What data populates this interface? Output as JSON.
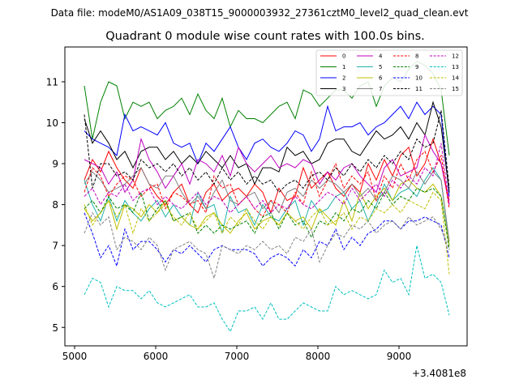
{
  "suptitle": "Data file: modeM0/AS1A09_038T15_9000003932_27361cztM0_level2_quad_clean.evt",
  "chart_data": {
    "type": "line",
    "title": "Quadrant 0 module wise count rates with 100.0s bins.",
    "xlabel": "",
    "ylabel": "",
    "x_offset_label": "+3.4081e8",
    "xlim": [
      4880,
      9840
    ],
    "ylim": [
      4.55,
      11.85
    ],
    "xticks": [
      5000,
      6000,
      7000,
      8000,
      9000
    ],
    "yticks": [
      5,
      6,
      7,
      8,
      9,
      10,
      11
    ],
    "x": [
      5120,
      5220,
      5320,
      5420,
      5520,
      5620,
      5720,
      5820,
      5920,
      6020,
      6120,
      6220,
      6320,
      6420,
      6520,
      6620,
      6720,
      6820,
      6920,
      7020,
      7120,
      7220,
      7320,
      7420,
      7520,
      7620,
      7720,
      7820,
      7920,
      8020,
      8120,
      8220,
      8320,
      8420,
      8520,
      8620,
      8720,
      8820,
      8920,
      9020,
      9120,
      9220,
      9320,
      9420,
      9520,
      9620
    ],
    "legend_loc": "upper-right",
    "series": [
      {
        "name": "0",
        "color": "#ff0000",
        "dash": "solid",
        "values": [
          8.6,
          9.1,
          8.8,
          9.3,
          8.9,
          8.6,
          8.4,
          8.9,
          8.5,
          8.2,
          8.0,
          8.3,
          8.5,
          8.0,
          7.8,
          8.3,
          8.5,
          8.1,
          8.3,
          8.4,
          8.2,
          8.5,
          8.3,
          7.8,
          8.4,
          8.1,
          8.2,
          8.9,
          8.4,
          8.6,
          8.8,
          8.4,
          8.2,
          8.5,
          8.3,
          9.0,
          8.6,
          9.1,
          8.7,
          9.2,
          9.4,
          8.7,
          9.0,
          9.6,
          9.0,
          8.1
        ]
      },
      {
        "name": "1",
        "color": "#008000",
        "dash": "solid",
        "values": [
          10.9,
          9.6,
          10.5,
          11.0,
          10.9,
          10.1,
          10.5,
          10.4,
          10.5,
          10.1,
          10.3,
          10.4,
          10.6,
          10.2,
          10.7,
          10.3,
          10.1,
          10.6,
          9.9,
          10.3,
          10.1,
          10.1,
          10.0,
          10.2,
          10.4,
          10.5,
          10.1,
          10.8,
          10.7,
          10.4,
          10.6,
          10.8,
          10.8,
          10.6,
          10.9,
          11.0,
          10.4,
          10.9,
          11.1,
          11.0,
          11.3,
          11.5,
          11.4,
          11.2,
          10.8,
          9.2
        ]
      },
      {
        "name": "2",
        "color": "#0000ff",
        "dash": "solid",
        "values": [
          9.8,
          9.6,
          9.5,
          9.4,
          9.2,
          10.2,
          9.8,
          9.9,
          9.8,
          9.7,
          10.0,
          9.5,
          9.4,
          9.5,
          9.0,
          9.5,
          9.3,
          9.6,
          9.9,
          9.4,
          9.1,
          9.5,
          9.6,
          9.4,
          9.3,
          9.5,
          9.8,
          9.7,
          9.3,
          9.6,
          10.4,
          9.8,
          9.9,
          9.9,
          10.0,
          9.7,
          9.9,
          10.0,
          10.2,
          10.4,
          10.1,
          10.5,
          10.2,
          10.4,
          10.2,
          8.2
        ]
      },
      {
        "name": "3",
        "color": "#000000",
        "dash": "solid",
        "values": [
          10.1,
          9.5,
          9.8,
          9.5,
          9.1,
          9.3,
          8.9,
          9.3,
          9.4,
          9.4,
          9.1,
          9.3,
          9.0,
          9.2,
          9.0,
          9.3,
          9.1,
          8.9,
          9.2,
          8.9,
          9.0,
          8.5,
          8.9,
          8.9,
          8.8,
          9.4,
          9.2,
          9.3,
          9.0,
          9.1,
          9.5,
          9.6,
          9.6,
          9.3,
          9.2,
          9.5,
          9.8,
          9.6,
          9.7,
          9.9,
          9.6,
          10.0,
          9.7,
          10.5,
          9.9,
          8.3
        ]
      },
      {
        "name": "4",
        "color": "#bf00bf",
        "dash": "solid",
        "values": [
          9.1,
          9.0,
          8.9,
          8.5,
          8.8,
          8.3,
          8.6,
          9.6,
          9.1,
          8.8,
          8.4,
          8.7,
          9.0,
          8.5,
          9.1,
          9.0,
          8.8,
          9.2,
          8.7,
          9.4,
          9.0,
          8.8,
          9.0,
          9.2,
          8.9,
          9.0,
          8.9,
          9.1,
          9.0,
          8.5,
          8.8,
          8.6,
          8.9,
          9.0,
          8.7,
          8.5,
          8.3,
          8.9,
          9.1,
          8.7,
          8.8,
          8.9,
          9.7,
          9.3,
          9.0,
          8.0
        ]
      },
      {
        "name": "5",
        "color": "#20b2aa",
        "dash": "solid",
        "values": [
          8.6,
          8.0,
          7.6,
          8.2,
          7.6,
          8.1,
          7.8,
          7.6,
          7.9,
          8.1,
          7.7,
          8.0,
          7.7,
          7.5,
          8.3,
          7.9,
          8.0,
          7.3,
          8.2,
          7.8,
          7.9,
          7.5,
          8.0,
          7.7,
          7.6,
          7.9,
          8.1,
          7.5,
          8.1,
          7.8,
          7.9,
          8.2,
          8.3,
          7.9,
          8.1,
          7.6,
          8.0,
          8.5,
          8.1,
          8.3,
          8.4,
          8.2,
          8.6,
          8.9,
          8.6,
          7.0
        ]
      },
      {
        "name": "6",
        "color": "#bfbf00",
        "dash": "solid",
        "values": [
          7.9,
          7.6,
          7.8,
          8.1,
          7.4,
          8.0,
          7.9,
          7.7,
          8.0,
          7.8,
          8.1,
          7.6,
          7.7,
          7.5,
          7.4,
          7.7,
          7.8,
          7.5,
          7.3,
          7.6,
          7.8,
          7.4,
          7.6,
          7.7,
          7.5,
          7.8,
          7.6,
          7.7,
          7.4,
          7.9,
          7.7,
          7.5,
          8.1,
          7.6,
          8.3,
          7.9,
          8.2,
          8.4,
          8.1,
          8.5,
          8.6,
          8.4,
          8.3,
          8.5,
          8.2,
          7.0
        ]
      },
      {
        "name": "7",
        "color": "#808080",
        "dash": "solid",
        "values": [
          8.5,
          8.8,
          8.6,
          8.3,
          8.4,
          8.5,
          8.7,
          8.9,
          8.5,
          8.4,
          8.7,
          8.7,
          8.3,
          8.0,
          8.2,
          7.9,
          8.3,
          8.6,
          8.1,
          8.0,
          8.2,
          8.3,
          7.9,
          8.1,
          7.8,
          8.3,
          8.4,
          8.2,
          8.6,
          8.4,
          8.6,
          8.5,
          8.3,
          8.5,
          8.2,
          8.4,
          8.1,
          8.3,
          8.7,
          8.6,
          8.4,
          8.8,
          8.5,
          8.8,
          8.6,
          7.1
        ]
      },
      {
        "name": "8",
        "color": "#ff0000",
        "dash": "dashed",
        "values": [
          8.3,
          8.9,
          8.7,
          8.2,
          8.5,
          8.7,
          8.6,
          8.2,
          8.4,
          8.5,
          7.9,
          8.3,
          8.2,
          8.0,
          8.1,
          7.8,
          8.7,
          8.4,
          8.5,
          8.0,
          8.2,
          7.9,
          7.7,
          8.1,
          8.0,
          7.8,
          8.3,
          8.0,
          8.8,
          8.2,
          8.6,
          9.0,
          8.4,
          8.7,
          8.5,
          8.8,
          8.1,
          8.7,
          8.4,
          9.0,
          8.6,
          9.1,
          9.3,
          8.8,
          9.2,
          7.9
        ]
      },
      {
        "name": "9",
        "color": "#008000",
        "dash": "dashed",
        "values": [
          7.9,
          8.1,
          7.8,
          8.2,
          7.9,
          8.0,
          7.8,
          8.3,
          7.6,
          7.9,
          8.1,
          7.6,
          7.7,
          7.8,
          7.3,
          7.5,
          7.3,
          7.5,
          7.4,
          7.5,
          7.6,
          7.3,
          7.7,
          7.8,
          7.4,
          7.8,
          7.5,
          7.6,
          7.2,
          7.6,
          7.5,
          7.8,
          7.6,
          7.9,
          7.8,
          8.1,
          7.9,
          8.3,
          8.0,
          8.2,
          8.1,
          8.4,
          8.3,
          8.4,
          8.2,
          6.9
        ]
      },
      {
        "name": "10",
        "color": "#0000ff",
        "dash": "dashed",
        "values": [
          7.8,
          7.3,
          6.7,
          7.0,
          6.5,
          7.4,
          6.9,
          7.1,
          7.1,
          6.9,
          6.6,
          6.9,
          6.8,
          7.0,
          6.8,
          6.6,
          6.9,
          7.0,
          6.9,
          6.9,
          6.9,
          6.8,
          6.5,
          6.7,
          6.8,
          6.7,
          6.5,
          6.9,
          6.7,
          7.1,
          7.0,
          7.4,
          6.9,
          7.2,
          7.0,
          7.3,
          7.4,
          7.6,
          7.6,
          7.4,
          7.6,
          7.6,
          7.7,
          7.6,
          7.5,
          6.7
        ]
      },
      {
        "name": "11",
        "color": "#000000",
        "dash": "dashed",
        "values": [
          10.2,
          8.4,
          9.0,
          9.0,
          8.7,
          8.8,
          8.6,
          9.1,
          8.9,
          9.0,
          8.8,
          9.0,
          8.7,
          8.9,
          8.6,
          8.8,
          8.5,
          8.9,
          8.6,
          8.8,
          8.5,
          8.7,
          8.5,
          8.6,
          8.3,
          8.5,
          8.6,
          8.4,
          8.7,
          8.8,
          8.6,
          8.9,
          8.7,
          9.0,
          8.8,
          9.1,
          8.9,
          9.2,
          9.0,
          9.3,
          9.1,
          9.6,
          9.4,
          9.5,
          10.3,
          8.4
        ]
      },
      {
        "name": "12",
        "color": "#bf00bf",
        "dash": "dashed",
        "values": [
          8.2,
          8.4,
          8.0,
          8.3,
          8.2,
          8.5,
          8.1,
          8.3,
          8.4,
          8.0,
          8.2,
          8.0,
          7.9,
          8.1,
          8.3,
          8.0,
          8.2,
          8.1,
          7.8,
          8.0,
          8.2,
          7.9,
          8.1,
          7.8,
          8.0,
          7.9,
          8.2,
          8.0,
          7.9,
          8.1,
          8.3,
          8.2,
          8.0,
          8.4,
          8.1,
          8.3,
          8.5,
          8.2,
          8.6,
          8.4,
          8.7,
          8.5,
          8.9,
          8.7,
          9.5,
          8.0
        ]
      },
      {
        "name": "13",
        "color": "#00bfbf",
        "dash": "dashed",
        "values": [
          5.8,
          6.2,
          6.1,
          5.5,
          6.0,
          5.9,
          5.9,
          5.7,
          5.9,
          5.6,
          5.5,
          5.6,
          5.7,
          5.8,
          5.5,
          5.5,
          5.6,
          5.2,
          4.9,
          5.4,
          5.4,
          5.5,
          5.2,
          5.6,
          5.2,
          5.2,
          5.4,
          5.6,
          5.5,
          5.4,
          5.4,
          6.0,
          5.8,
          5.9,
          5.8,
          5.7,
          5.8,
          6.4,
          6.1,
          6.2,
          5.8,
          7.0,
          6.2,
          6.3,
          6.1,
          5.3
        ]
      },
      {
        "name": "14",
        "color": "#bfbf00",
        "dash": "dashed",
        "values": [
          8.0,
          7.5,
          7.8,
          8.1,
          7.7,
          8.0,
          7.3,
          7.9,
          7.6,
          7.8,
          8.0,
          7.7,
          7.5,
          7.8,
          7.4,
          7.6,
          7.8,
          7.3,
          7.7,
          7.5,
          7.9,
          7.6,
          7.4,
          7.7,
          7.5,
          7.8,
          7.6,
          7.4,
          7.7,
          7.9,
          7.5,
          7.6,
          7.8,
          7.4,
          7.7,
          7.6,
          7.9,
          7.8,
          8.0,
          7.8,
          8.1,
          8.0,
          7.9,
          8.3,
          8.1,
          6.3
        ]
      },
      {
        "name": "15",
        "color": "#808080",
        "dash": "dashed",
        "values": [
          7.3,
          7.8,
          7.5,
          7.7,
          6.9,
          7.2,
          7.1,
          6.9,
          7.2,
          7.0,
          6.4,
          6.9,
          7.0,
          7.1,
          6.9,
          6.8,
          6.2,
          7.0,
          6.9,
          6.8,
          7.0,
          6.9,
          7.1,
          6.9,
          7.0,
          6.8,
          7.2,
          7.1,
          7.4,
          6.6,
          7.0,
          7.3,
          7.2,
          7.5,
          7.4,
          7.6,
          7.3,
          7.5,
          7.6,
          7.4,
          7.7,
          7.5,
          7.6,
          7.7,
          7.4,
          6.9
        ]
      }
    ]
  }
}
